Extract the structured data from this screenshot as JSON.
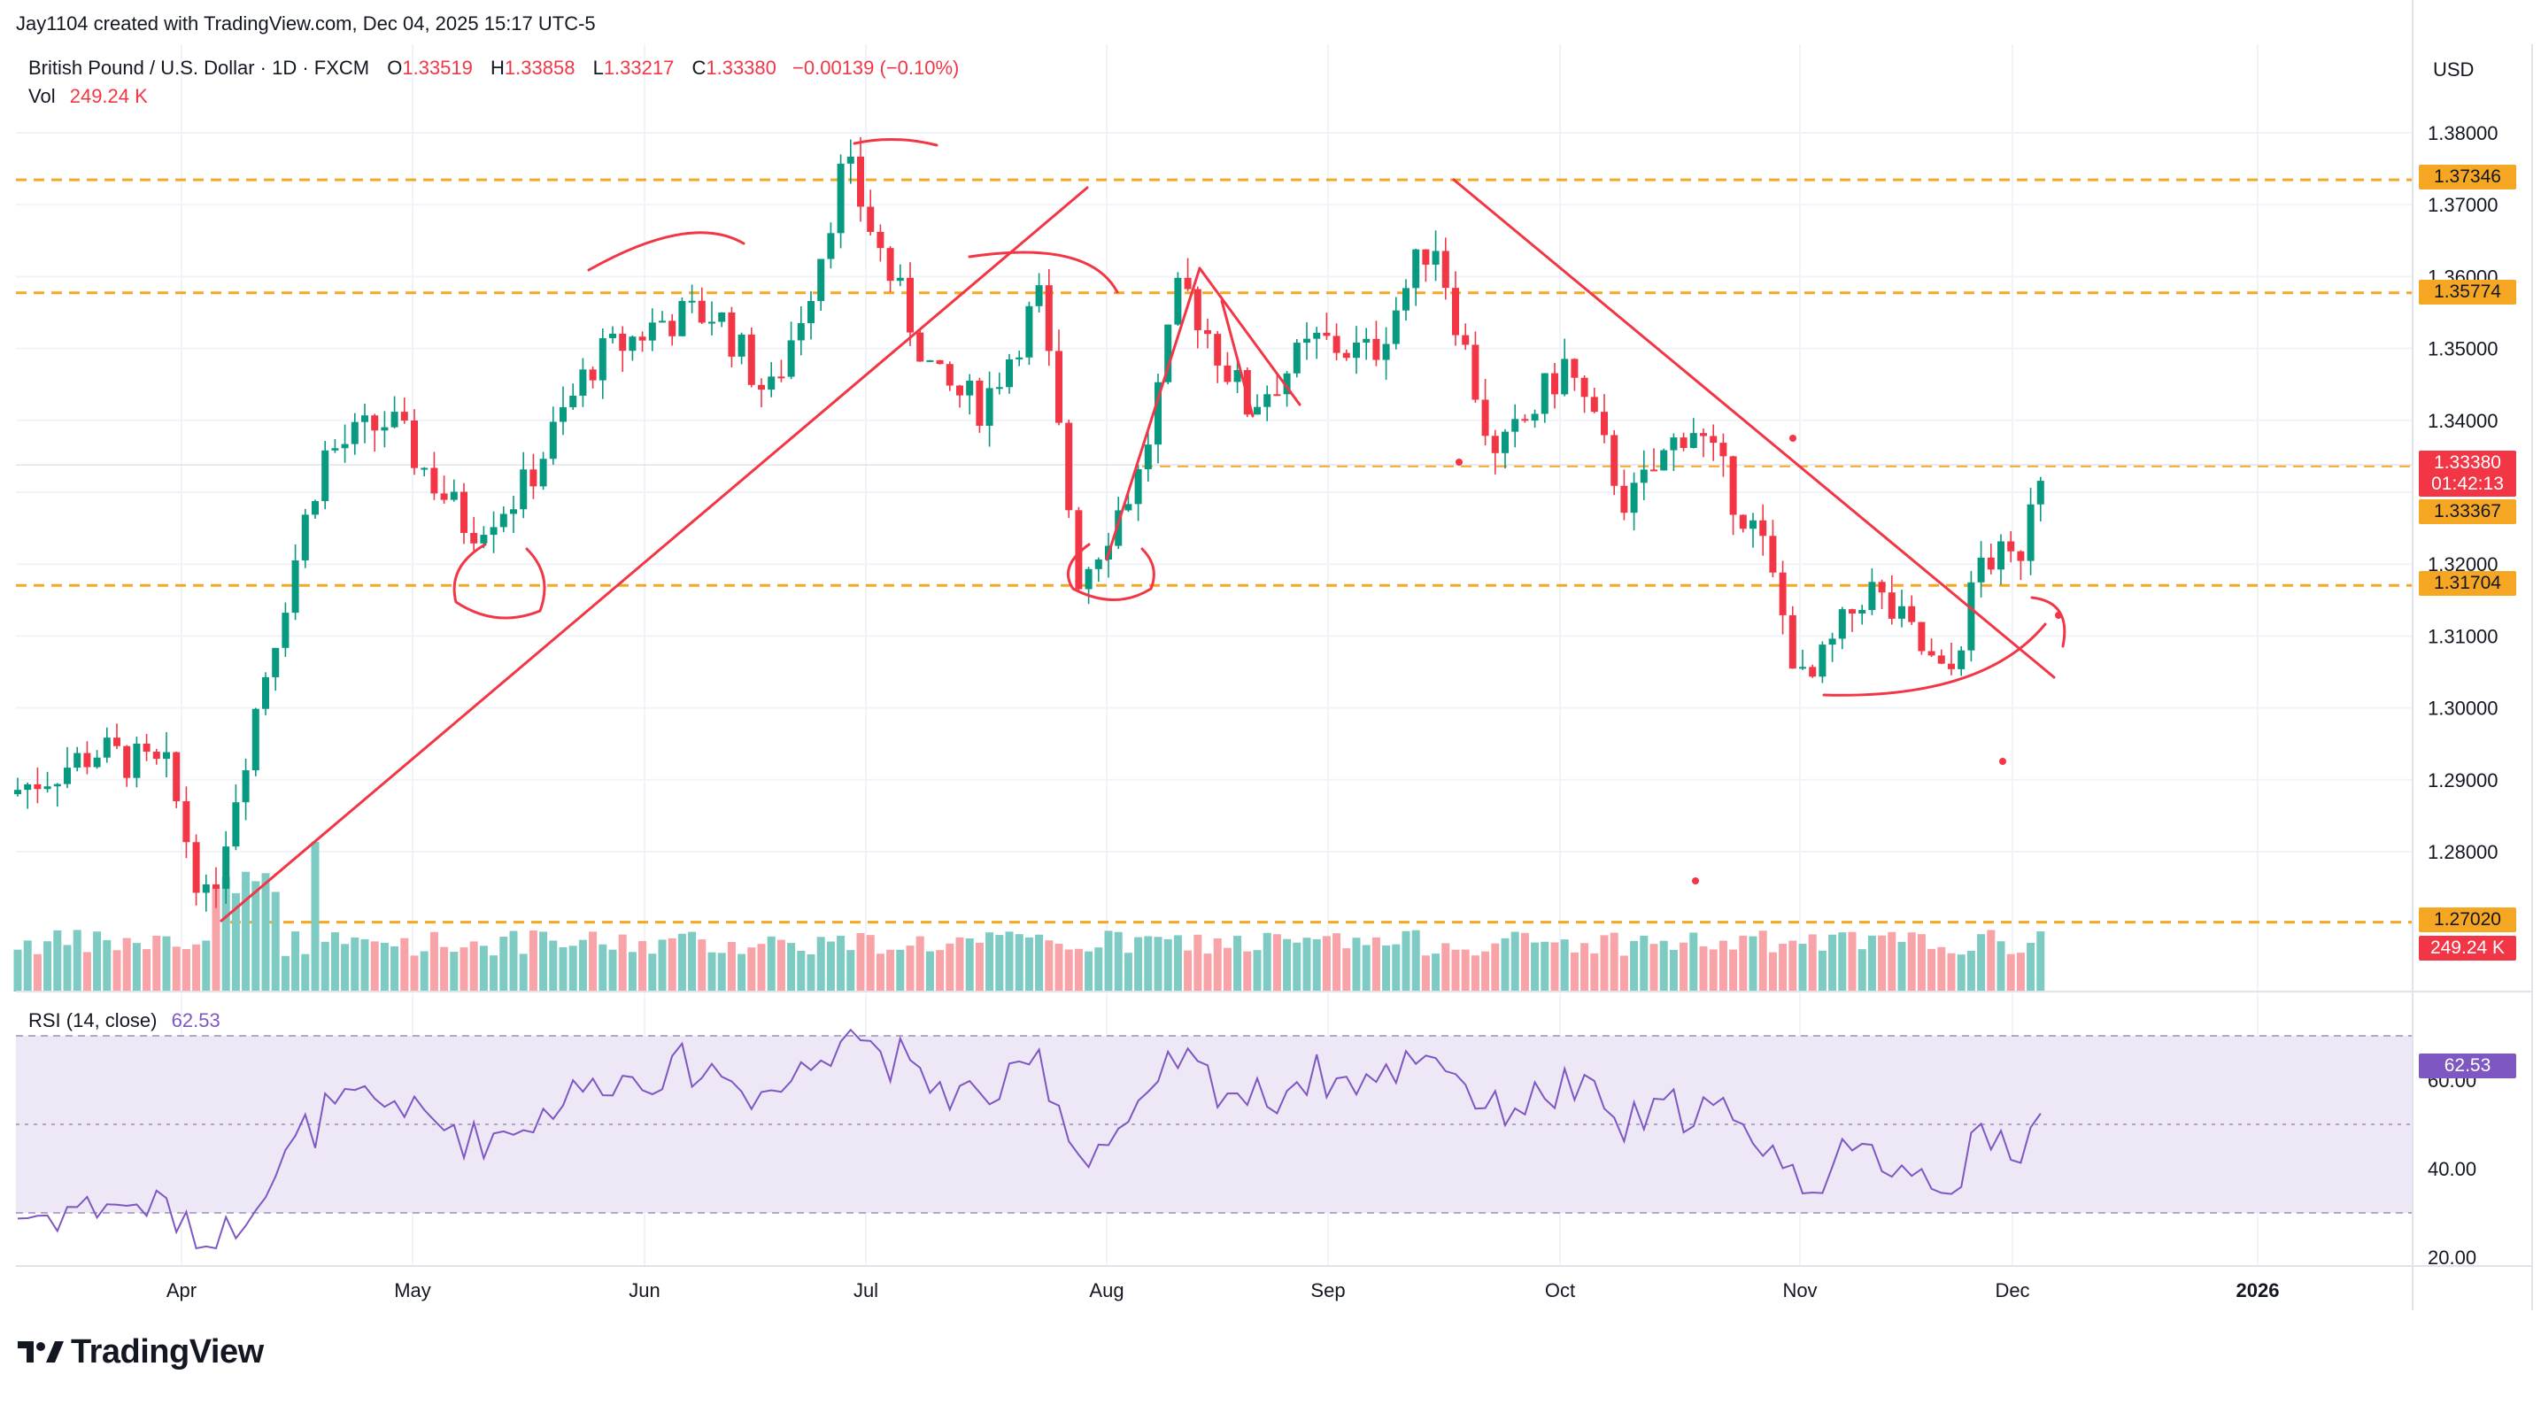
{
  "header": {
    "credit": "Jay1104 created with TradingView.com, Dec 04, 2025 15:17 UTC-5",
    "symbol": "British Pound / U.S. Dollar · 1D · FXCM",
    "open_label": "O",
    "open": "1.33519",
    "high_label": "H",
    "high": "1.33858",
    "low_label": "L",
    "low": "1.33217",
    "close_label": "C",
    "close": "1.33380",
    "change": "−0.00139 (−0.10%)",
    "vol_label": "Vol",
    "vol_value": "249.24 K"
  },
  "currency_button": "USD",
  "price_axis_ticks": [
    "1.38000",
    "1.37000",
    "1.36000",
    "1.35000",
    "1.34000",
    "1.32000",
    "1.31000",
    "1.30000",
    "1.29000",
    "1.28000"
  ],
  "time_axis_ticks": [
    "Apr",
    "May",
    "Jun",
    "Jul",
    "Aug",
    "Sep",
    "Oct",
    "Nov",
    "Dec",
    "2026"
  ],
  "price_tags": {
    "level_1": "1.37346",
    "level_2": "1.35774",
    "last_price": "1.33380",
    "countdown": "01:42:13",
    "level_3": "1.33367",
    "level_4": "1.31704",
    "level_5": "1.27020",
    "volume_tag": "249.24 K"
  },
  "rsi": {
    "label": "RSI (14, close)",
    "value": "62.53",
    "ticks": [
      "60.00",
      "40.00",
      "20.00"
    ]
  },
  "brand": "TradingView",
  "colors": {
    "bull": "#089981",
    "bear": "#f23645",
    "bull_vol": "#7dcbc2",
    "bear_vol": "#f7a3a8",
    "level": "#f5a623",
    "drawing": "#f23645",
    "rsi_line": "#7e57c2",
    "rsi_band": "#ede7f6"
  },
  "chart_data": {
    "type": "candlestick",
    "series_name": "GBP/USD",
    "timeframe": "1D",
    "date_range": [
      "Mar 2025",
      "Dec 04, 2025"
    ],
    "ylim": [
      1.27,
      1.381
    ],
    "horizontal_levels": [
      1.37346,
      1.35774,
      1.33367,
      1.31704,
      1.2702
    ],
    "last_price": 1.3338,
    "monthly_path": [
      {
        "month": "Mar",
        "close": 1.291
      },
      {
        "month": "Apr",
        "close": 1.329
      },
      {
        "month": "May",
        "close": 1.346
      },
      {
        "month": "Jun",
        "close": 1.373
      },
      {
        "month": "Jul",
        "close": 1.321
      },
      {
        "month": "Aug",
        "close": 1.349
      },
      {
        "month": "Sep",
        "close": 1.347
      },
      {
        "month": "Oct",
        "close": 1.314
      },
      {
        "month": "Nov",
        "close": 1.322
      },
      {
        "month": "Dec",
        "close": 1.3338
      }
    ],
    "volume_last": "249.24 K",
    "rsi_last": 62.53,
    "rsi_ylim": [
      20,
      80
    ]
  }
}
